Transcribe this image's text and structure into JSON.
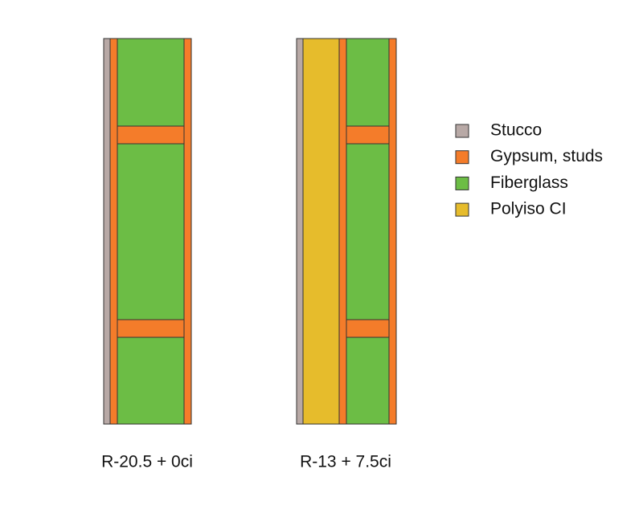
{
  "walls": [
    {
      "label": "R-20.5 + 0ci"
    },
    {
      "label": "R-13 + 7.5ci"
    }
  ],
  "legend": [
    {
      "name": "Stucco",
      "color": "#b8a9a6"
    },
    {
      "name": "Gypsum, studs",
      "color": "#f47c2a"
    },
    {
      "name": "Fiberglass",
      "color": "#6cbd45"
    },
    {
      "name": "Polyiso CI",
      "color": "#e6bc2c"
    }
  ]
}
